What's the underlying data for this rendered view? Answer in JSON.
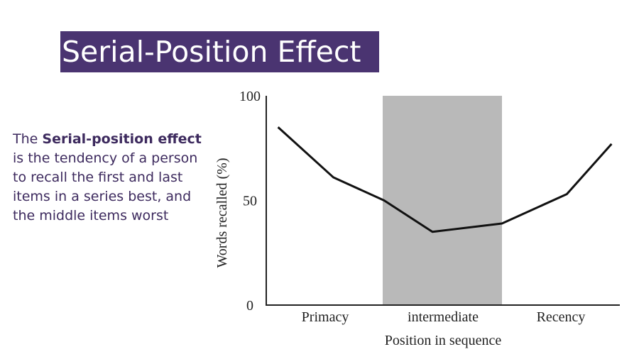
{
  "slide": {
    "title": "Serial-Position Effect",
    "description": {
      "prefix": "The ",
      "term": "Serial-position effect",
      "suffix": " is the tendency of a person to recall the first and last items in a series best, and the middle items worst"
    }
  },
  "colors": {
    "title_background": "#4a3471",
    "title_text": "#ffffff",
    "description_text": "#3d2a5e",
    "shaded_region": "#b9b9b9",
    "line": "#111111"
  },
  "chart_data": {
    "type": "line",
    "title": "",
    "xlabel": "Position in sequence",
    "ylabel": "Words recalled (%)",
    "ylim": [
      0,
      100
    ],
    "yticks": [
      0,
      50,
      100
    ],
    "xlim": [
      0,
      3
    ],
    "categories": [
      "Primacy",
      "intermediate",
      "Recency"
    ],
    "category_centers": [
      0.5,
      1.5,
      2.5
    ],
    "shaded_range": [
      1,
      2
    ],
    "grid": false,
    "series": [
      {
        "x": [
          0.1,
          0.57,
          1.0,
          1.41,
          2.0,
          2.55,
          2.93
        ],
        "y": [
          85,
          61,
          50,
          35,
          39,
          53,
          77
        ]
      }
    ]
  }
}
